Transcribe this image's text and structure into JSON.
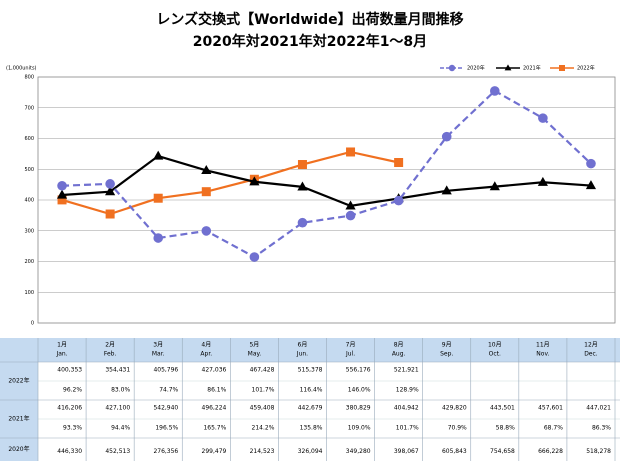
{
  "chart_data": {
    "type": "line",
    "title": "レンズ交換式【Worldwide】出荷数量月間推移",
    "subtitle": "2020年対2021年対2022年1～8月",
    "y_label": "(1,000units)",
    "categories": [
      "1月",
      "2月",
      "3月",
      "4月",
      "5月",
      "6月",
      "7月",
      "8月",
      "9月",
      "10月",
      "11月",
      "12月"
    ],
    "categories_en": [
      "Jan.",
      "Feb.",
      "Mar.",
      "Apr.",
      "May.",
      "Jun.",
      "Jul.",
      "Aug.",
      "Sep.",
      "Oct.",
      "Nov.",
      "Dec."
    ],
    "ylim": [
      0,
      800
    ],
    "yticks": [
      0,
      100,
      200,
      300,
      400,
      500,
      600,
      700,
      800
    ],
    "grid": true,
    "legend": "top-right",
    "series": [
      {
        "name": "2022年",
        "color": "#f07020",
        "marker": "square",
        "dash": false,
        "values": [
          400.353,
          354.431,
          405.796,
          427.036,
          467.428,
          515.378,
          556.176,
          521.921,
          null,
          null,
          null,
          null
        ],
        "value_labels": [
          "400,353",
          "354,431",
          "405,796",
          "427,036",
          "467,428",
          "515,378",
          "556,176",
          "521,921",
          null,
          null,
          null,
          null
        ],
        "yoy_labels": [
          "96.2%",
          "83.0%",
          "74.7%",
          "86.1%",
          "101.7%",
          "116.4%",
          "146.0%",
          "128.9%",
          null,
          null,
          null,
          null
        ]
      },
      {
        "name": "2021年",
        "color": "#000000",
        "marker": "triangle",
        "dash": false,
        "values": [
          416.206,
          427.1,
          542.94,
          496.224,
          459.408,
          442.679,
          380.829,
          404.942,
          429.82,
          443.501,
          457.601,
          447.021
        ],
        "value_labels": [
          "416,206",
          "427,100",
          "542,940",
          "496,224",
          "459,408",
          "442,679",
          "380,829",
          "404,942",
          "429,820",
          "443,501",
          "457,601",
          "447,021"
        ],
        "yoy_labels": [
          "93.3%",
          "94.4%",
          "196.5%",
          "165.7%",
          "214.2%",
          "135.8%",
          "109.0%",
          "101.7%",
          "70.9%",
          "58.8%",
          "68.7%",
          "86.3%"
        ]
      },
      {
        "name": "2020年",
        "color": "#7070d0",
        "marker": "circle",
        "dash": true,
        "values": [
          446.33,
          452.513,
          276.356,
          299.479,
          214.523,
          326.094,
          349.28,
          398.067,
          605.843,
          754.658,
          666.228,
          518.278
        ],
        "value_labels": [
          "446,330",
          "452,513",
          "276,356",
          "299,479",
          "214,523",
          "326,094",
          "349,280",
          "398,067",
          "605,843",
          "754,658",
          "666,228",
          "518,278"
        ]
      }
    ]
  }
}
